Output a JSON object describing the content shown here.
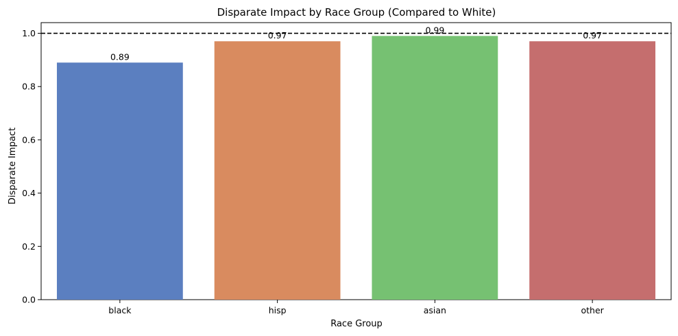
{
  "chart_data": {
    "type": "bar",
    "title": "Disparate Impact by Race Group (Compared to White)",
    "xlabel": "Race Group",
    "ylabel": "Disparate Impact",
    "categories": [
      "black",
      "hisp",
      "asian",
      "other"
    ],
    "values": [
      0.89,
      0.97,
      0.99,
      0.97
    ],
    "value_labels": [
      "0.89",
      "0.97",
      "0.99",
      "0.97"
    ],
    "colors": [
      "#5b7fc0",
      "#d98b5f",
      "#76c172",
      "#c56e6e"
    ],
    "ylim": [
      0,
      1.04
    ],
    "yticks": [
      0.0,
      0.2,
      0.4,
      0.6,
      0.8,
      1.0
    ],
    "ytick_labels": [
      "0.0",
      "0.2",
      "0.4",
      "0.6",
      "0.8",
      "1.0"
    ],
    "reference_line": {
      "value": 1.0,
      "style": "dashed",
      "color": "#000000"
    },
    "grid": false,
    "legend": "none"
  }
}
